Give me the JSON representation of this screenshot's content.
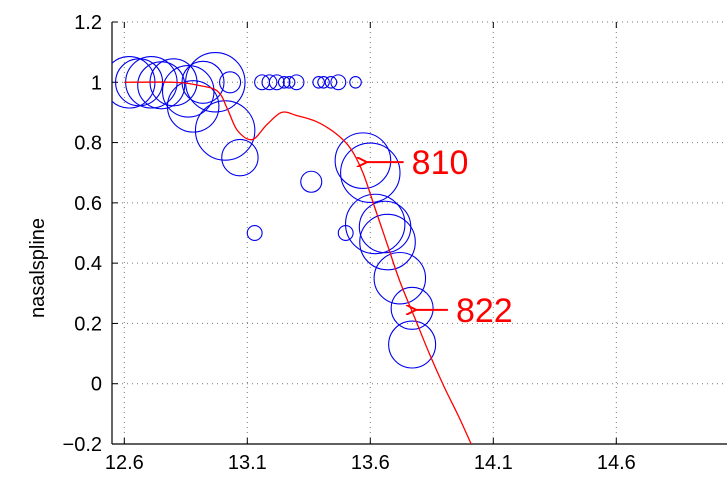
{
  "chart_data": {
    "type": "scatter",
    "title": "",
    "xlabel": "",
    "ylabel": "nasalspline",
    "xlim": [
      12.55,
      15.05
    ],
    "ylim": [
      -0.2,
      1.2
    ],
    "x_ticks": [
      "12.6",
      "13.1",
      "13.6",
      "14.1",
      "14.6"
    ],
    "x_tick_values": [
      12.6,
      13.1,
      13.6,
      14.1,
      14.6
    ],
    "y_ticks": [
      "1.2",
      "1",
      "0.8",
      "0.6",
      "0.4",
      "0.2",
      "0",
      "−0.2"
    ],
    "y_tick_values": [
      1.2,
      1.0,
      0.8,
      0.6,
      0.4,
      0.2,
      0.0,
      -0.2
    ],
    "grid": true,
    "legend": "none",
    "colors": {
      "circles": "#0000ee",
      "curve": "#ff0000",
      "annotation": "#ff0000",
      "grid": "#777777"
    },
    "circles": {
      "description_of_encoding": "",
      "points": [
        {
          "x": 12.62,
          "y": 1.0,
          "w": 6
        },
        {
          "x": 12.66,
          "y": 1.0,
          "w": 5
        },
        {
          "x": 12.71,
          "y": 1.0,
          "w": 6
        },
        {
          "x": 12.75,
          "y": 0.99,
          "w": 5
        },
        {
          "x": 12.8,
          "y": 1.0,
          "w": 5
        },
        {
          "x": 12.86,
          "y": 0.97,
          "w": 6
        },
        {
          "x": 12.88,
          "y": 0.92,
          "w": 6
        },
        {
          "x": 12.92,
          "y": 1.0,
          "w": 4
        },
        {
          "x": 12.97,
          "y": 1.0,
          "w": 8
        },
        {
          "x": 13.01,
          "y": 0.84,
          "w": 8
        },
        {
          "x": 13.03,
          "y": 1.0,
          "w": 1
        },
        {
          "x": 13.07,
          "y": 0.75,
          "w": 3
        },
        {
          "x": 13.13,
          "y": 0.5,
          "w": 0.5
        },
        {
          "x": 13.16,
          "y": 1.0,
          "w": 0.5
        },
        {
          "x": 13.19,
          "y": 1.0,
          "w": 0.5
        },
        {
          "x": 13.22,
          "y": 1.0,
          "w": 0.5
        },
        {
          "x": 13.25,
          "y": 1.0,
          "w": 0.3
        },
        {
          "x": 13.27,
          "y": 1.0,
          "w": 0.3
        },
        {
          "x": 13.3,
          "y": 1.0,
          "w": 0.5
        },
        {
          "x": 13.36,
          "y": 0.67,
          "w": 1
        },
        {
          "x": 13.39,
          "y": 1.0,
          "w": 0.3
        },
        {
          "x": 13.41,
          "y": 1.0,
          "w": 0.3
        },
        {
          "x": 13.44,
          "y": 1.0,
          "w": 0.3
        },
        {
          "x": 13.47,
          "y": 1.0,
          "w": 0.5
        },
        {
          "x": 13.5,
          "y": 0.5,
          "w": 0.5
        },
        {
          "x": 13.54,
          "y": 1.0,
          "w": 0.3
        },
        {
          "x": 13.57,
          "y": 0.74,
          "w": 7
        },
        {
          "x": 13.6,
          "y": 0.7,
          "w": 8
        },
        {
          "x": 13.62,
          "y": 0.53,
          "w": 8
        },
        {
          "x": 13.66,
          "y": 0.52,
          "w": 6
        },
        {
          "x": 13.67,
          "y": 0.47,
          "w": 7
        },
        {
          "x": 13.72,
          "y": 0.35,
          "w": 6
        },
        {
          "x": 13.77,
          "y": 0.25,
          "w": 4
        },
        {
          "x": 13.77,
          "y": 0.13,
          "w": 5
        }
      ]
    },
    "curve": {
      "x": [
        12.6,
        12.8,
        12.9,
        12.98,
        13.02,
        13.06,
        13.12,
        13.18,
        13.24,
        13.3,
        13.38,
        13.46,
        13.52,
        13.57,
        13.62,
        13.67,
        13.72,
        13.78,
        13.84,
        13.9,
        13.96,
        14.01
      ],
      "y": [
        1.0,
        1.0,
        0.99,
        0.97,
        0.91,
        0.84,
        0.81,
        0.86,
        0.9,
        0.89,
        0.87,
        0.83,
        0.78,
        0.7,
        0.58,
        0.46,
        0.34,
        0.22,
        0.1,
        -0.01,
        -0.11,
        -0.2
      ]
    },
    "annotations": [
      {
        "text": "810",
        "x": 13.57,
        "y": 0.735,
        "label_x": 13.76,
        "label_y": 0.735
      },
      {
        "text": "822",
        "x": 13.77,
        "y": 0.245,
        "label_x": 13.94,
        "label_y": 0.245
      }
    ]
  }
}
